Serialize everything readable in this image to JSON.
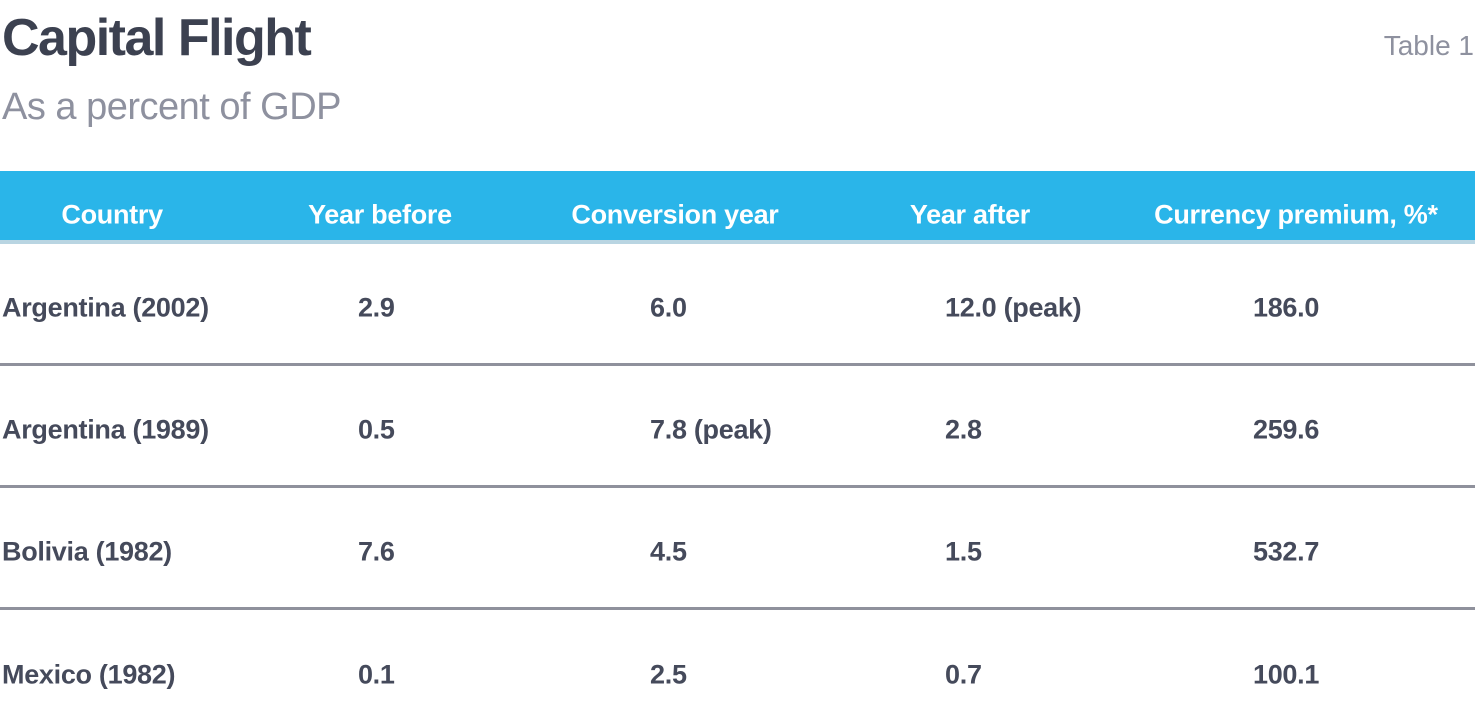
{
  "header": {
    "title": "Capital Flight",
    "subtitle": "As a percent of GDP",
    "table_label": "Table 1"
  },
  "table": {
    "columns": [
      "Country",
      "Year before",
      "Conversion year",
      "Year after",
      "Currency premium, %*"
    ],
    "rows": [
      {
        "country": "Argentina (2002)",
        "year_before": "2.9",
        "conversion_year": "6.0",
        "year_after": "12.0 (peak)",
        "currency_premium": "186.0"
      },
      {
        "country": "Argentina (1989)",
        "year_before": "0.5",
        "conversion_year": "7.8 (peak)",
        "year_after": "2.8",
        "currency_premium": "259.6"
      },
      {
        "country": "Bolivia (1982)",
        "year_before": "7.6",
        "conversion_year": "4.5",
        "year_after": "1.5",
        "currency_premium": "532.7"
      },
      {
        "country": "Mexico (1982)",
        "year_before": "0.1",
        "conversion_year": "2.5",
        "year_after": "0.7",
        "currency_premium": "100.1"
      }
    ]
  },
  "colors": {
    "header_bg": "#2ab5e9",
    "header_underline": "#b9d5e2",
    "row_divider": "#8f919c",
    "title_text": "#3c4150",
    "body_text": "#454a5b",
    "muted_text": "#8e919f"
  },
  "chart_data": {
    "type": "table",
    "title": "Capital Flight",
    "subtitle": "As a percent of GDP",
    "note": "Table 1",
    "columns": [
      "Country",
      "Year before",
      "Conversion year",
      "Year after",
      "Currency premium, %*"
    ],
    "rows": [
      [
        "Argentina (2002)",
        "2.9",
        "6.0",
        "12.0 (peak)",
        "186.0"
      ],
      [
        "Argentina (1989)",
        "0.5",
        "7.8 (peak)",
        "2.8",
        "259.6"
      ],
      [
        "Bolivia (1982)",
        "7.6",
        "4.5",
        "1.5",
        "532.7"
      ],
      [
        "Mexico (1982)",
        "0.1",
        "2.5",
        "0.7",
        "100.1"
      ]
    ]
  }
}
